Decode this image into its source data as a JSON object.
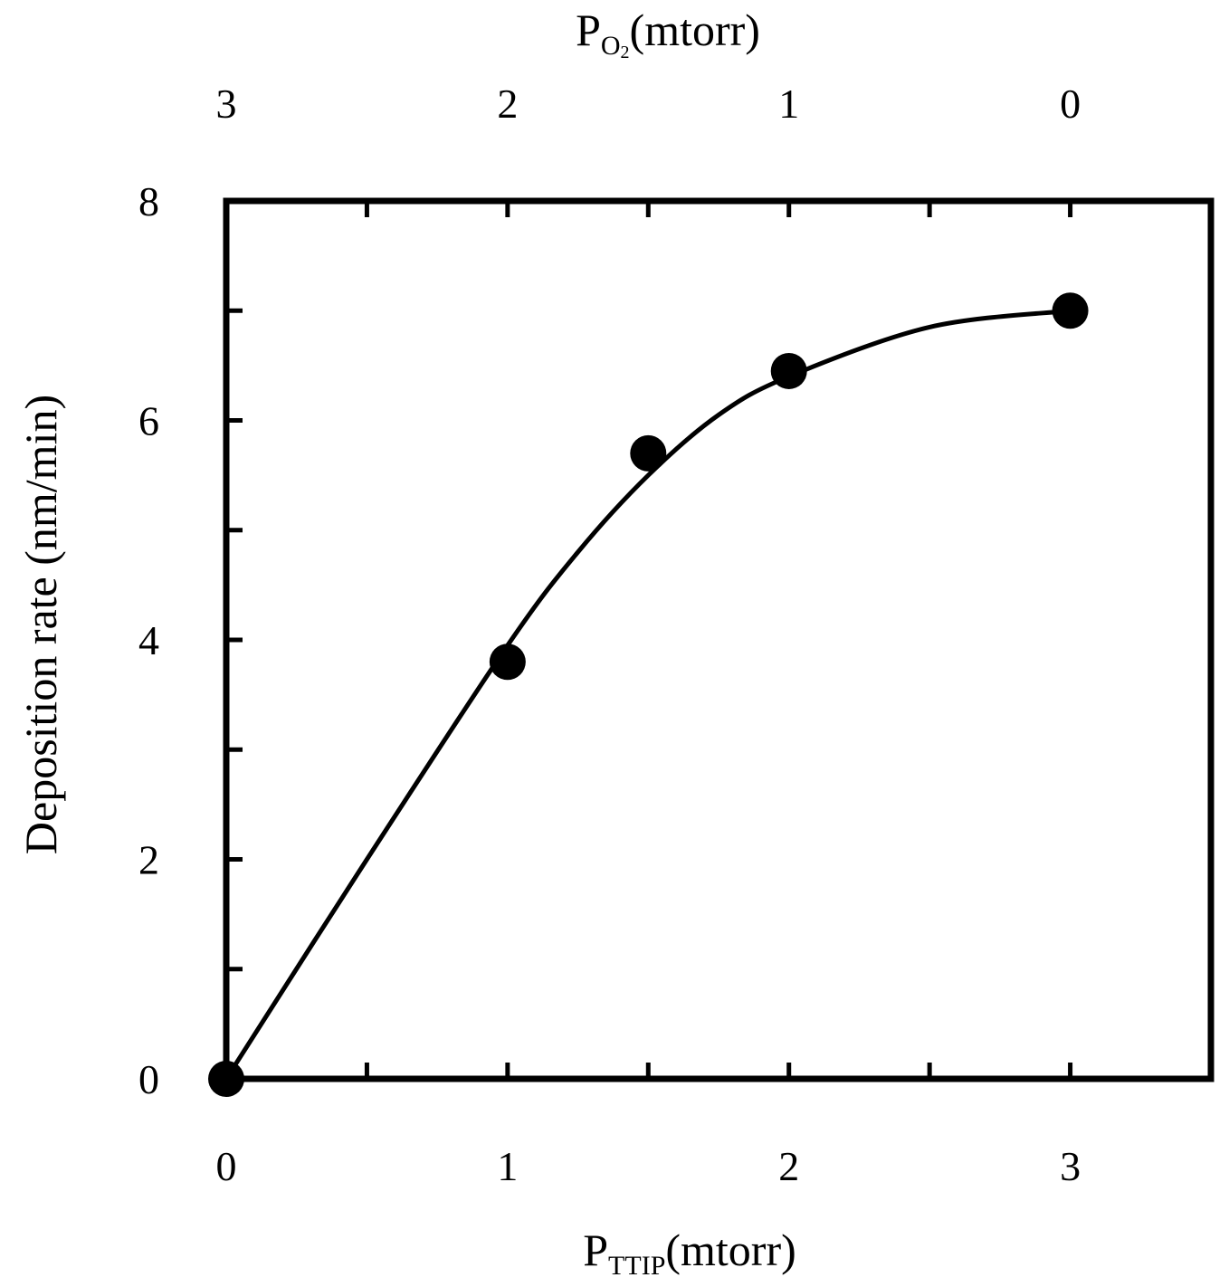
{
  "chart_data": {
    "type": "scatter",
    "title": "",
    "xlabel": {
      "main": "P",
      "sub": "TTIP",
      "unit": "(mtorr)"
    },
    "x2label": {
      "main": "P",
      "sub": "O",
      "subsub": "2",
      "unit": "(mtorr)"
    },
    "ylabel": "Deposition rate (nm/min)",
    "xlim": [
      0,
      3.5
    ],
    "ylim": [
      0,
      8
    ],
    "x_ticks": [
      0,
      1,
      2,
      3
    ],
    "x_tick_labels": [
      "0",
      "1",
      "2",
      "3"
    ],
    "x2_ticks": [
      0,
      1,
      2,
      3
    ],
    "x2_tick_labels": [
      "3",
      "2",
      "1",
      "0"
    ],
    "y_ticks": [
      0,
      2,
      4,
      6,
      8
    ],
    "y_tick_labels": [
      "0",
      "2",
      "4",
      "6",
      "8"
    ],
    "grid": false,
    "legend": "none",
    "colors": {
      "marker": "#000000",
      "line": "#000000",
      "axes": "#000000"
    },
    "series": [
      {
        "kind": "points",
        "x": [
          0,
          1,
          1.5,
          2,
          3
        ],
        "y": [
          0,
          3.8,
          5.7,
          6.45,
          7.0
        ]
      },
      {
        "kind": "fit-curve",
        "x": [
          0,
          0.5,
          1,
          1.25,
          1.5,
          1.75,
          2,
          2.5,
          3
        ],
        "y": [
          0,
          2.0,
          3.95,
          4.8,
          5.5,
          6.05,
          6.4,
          6.85,
          7.0
        ]
      }
    ]
  }
}
